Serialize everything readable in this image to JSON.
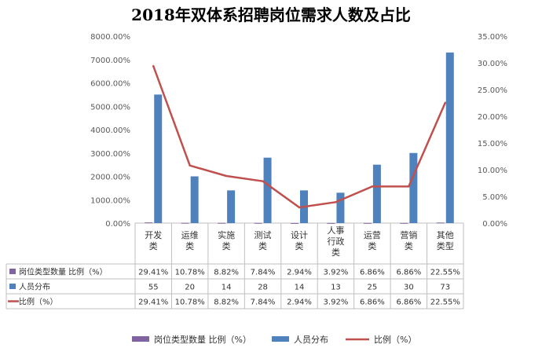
{
  "chart_data": {
    "type": "bar+line",
    "title": "2018年双体系招聘岗位需求人数及占比",
    "categories": [
      [
        "开发",
        "类"
      ],
      [
        "运维",
        "类"
      ],
      [
        "实施",
        "类"
      ],
      [
        "测试",
        "类"
      ],
      [
        "设计",
        "类"
      ],
      [
        "人事",
        "行政",
        "类"
      ],
      [
        "运营",
        "类"
      ],
      [
        "营销",
        "类"
      ],
      [
        "其他",
        "类型"
      ]
    ],
    "left_axis": {
      "min": 0,
      "max": 8000,
      "step": 1000,
      "ticks": [
        "0.00%",
        "1000.00%",
        "2000.00%",
        "3000.00%",
        "4000.00%",
        "5000.00%",
        "6000.00%",
        "7000.00%",
        "8000.00%"
      ]
    },
    "right_axis": {
      "min": 0,
      "max": 35,
      "step": 5,
      "ticks": [
        "0.00%",
        "5.00%",
        "10.00%",
        "15.00%",
        "20.00%",
        "25.00%",
        "30.00%",
        "35.00%"
      ]
    },
    "series": [
      {
        "name": "岗位类型数量 比例（%）",
        "kind": "bar",
        "axis": "left",
        "color": "#8064A2",
        "values": [
          29.41,
          10.78,
          8.82,
          7.84,
          2.94,
          3.92,
          6.86,
          6.86,
          22.55
        ],
        "labels": [
          "29.41%",
          "10.78%",
          "8.82%",
          "7.84%",
          "2.94%",
          "3.92%",
          "6.86%",
          "6.86%",
          "22.55%"
        ]
      },
      {
        "name": "人员分布",
        "kind": "bar",
        "axis": "left",
        "color": "#4F81BD",
        "values": [
          55,
          20,
          14,
          28,
          14,
          13,
          25,
          30,
          73
        ],
        "plotted_percent": [
          5500,
          2000,
          1400,
          2800,
          1400,
          1300,
          2500,
          3000,
          7300
        ],
        "labels": [
          "55",
          "20",
          "14",
          "28",
          "14",
          "13",
          "25",
          "30",
          "73"
        ]
      },
      {
        "name": "比例（%）",
        "kind": "line",
        "axis": "right",
        "color": "#C0504D",
        "values": [
          29.41,
          10.78,
          8.82,
          7.84,
          2.94,
          3.92,
          6.86,
          6.86,
          22.55
        ],
        "labels": [
          "29.41%",
          "10.78%",
          "8.82%",
          "7.84%",
          "2.94%",
          "3.92%",
          "6.86%",
          "6.86%",
          "22.55%"
        ]
      }
    ],
    "legend_position": "bottom",
    "grid": false,
    "data_table": true
  }
}
